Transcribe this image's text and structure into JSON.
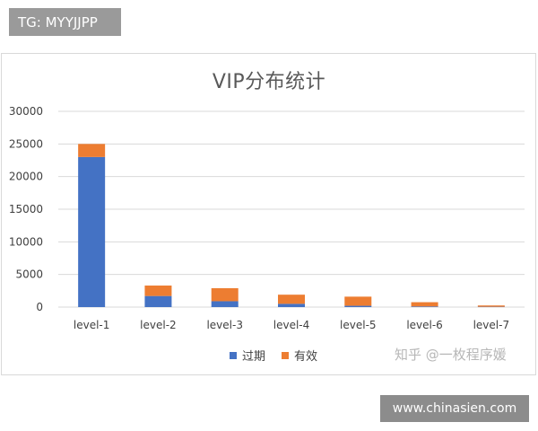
{
  "overlay_tag": "TG: MYYJJPP",
  "site_tag": "www.chinasien.com",
  "watermark": "知乎 @一枚程序媛",
  "colors": {
    "expired": "#4472c4",
    "valid": "#ed7d31",
    "grid": "#d9d9d9"
  },
  "chart_data": {
    "type": "bar",
    "stacked": true,
    "title": "VIP分布统计",
    "xlabel": "",
    "ylabel": "",
    "categories": [
      "level-1",
      "level-2",
      "level-3",
      "level-4",
      "level-5",
      "level-6",
      "level-7"
    ],
    "series": [
      {
        "name": "过期",
        "values": [
          23000,
          1700,
          900,
          500,
          200,
          100,
          50
        ]
      },
      {
        "name": "有效",
        "values": [
          2000,
          1600,
          2000,
          1400,
          1400,
          650,
          200
        ]
      }
    ],
    "ylim": [
      0,
      30000
    ],
    "yticks": [
      "0",
      "5000",
      "10000",
      "15000",
      "20000",
      "25000",
      "30000"
    ],
    "grid": true,
    "legend_position": "bottom"
  }
}
